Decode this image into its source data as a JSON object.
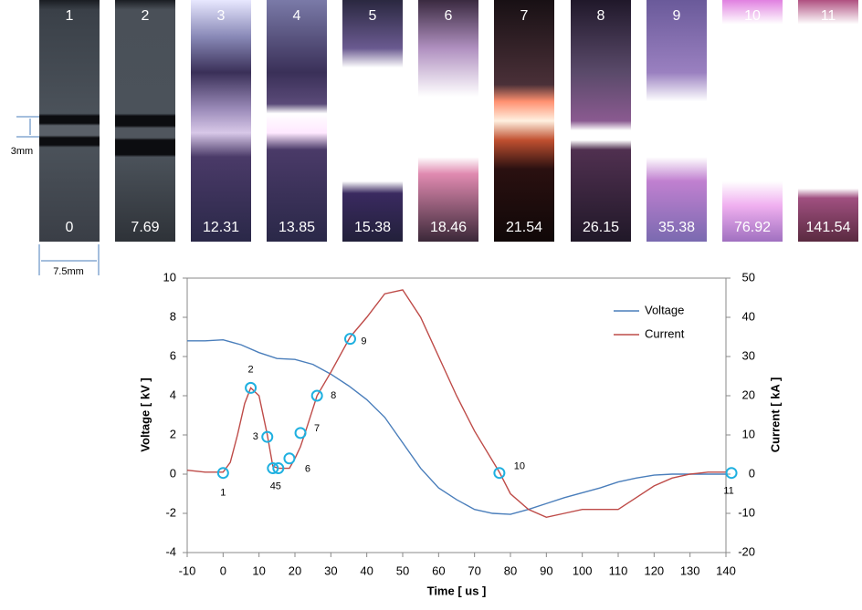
{
  "frames": [
    {
      "label": "1",
      "time": 0
    },
    {
      "label": "2",
      "time": 7.69
    },
    {
      "label": "3",
      "time": 12.31
    },
    {
      "label": "4",
      "time": 13.85
    },
    {
      "label": "5",
      "time": 15.38
    },
    {
      "label": "6",
      "time": 18.46
    },
    {
      "label": "7",
      "time": 21.54
    },
    {
      "label": "8",
      "time": 26.15
    },
    {
      "label": "9",
      "time": 35.38
    },
    {
      "label": "10",
      "time": 76.92
    },
    {
      "label": "11",
      "time": 141.54
    }
  ],
  "annotations": {
    "gap": "3mm",
    "width": "7.5mm"
  },
  "chart_data": {
    "type": "line",
    "x_label": "Time [ us ]",
    "y_label": "Voltage [ kV ]",
    "y2_label": "Current [ kA ]",
    "xlim": [
      -10,
      140
    ],
    "xticks": [
      -10,
      0,
      10,
      20,
      30,
      40,
      50,
      60,
      70,
      80,
      90,
      100,
      110,
      120,
      130,
      140
    ],
    "ylim": [
      -4,
      10
    ],
    "yticks": [
      -4,
      -2,
      0,
      2,
      4,
      6,
      8,
      10
    ],
    "y2lim": [
      -20,
      50
    ],
    "y2ticks": [
      -20,
      -10,
      0,
      10,
      20,
      30,
      40,
      50
    ],
    "legend": "upper right",
    "series": [
      {
        "name": "Voltage",
        "color": "#4a7ebb",
        "x": [
          -10,
          -5,
          0,
          5,
          10,
          15,
          20,
          25,
          30,
          35,
          40,
          45,
          50,
          55,
          60,
          65,
          70,
          75,
          80,
          85,
          90,
          95,
          100,
          105,
          110,
          115,
          120,
          125,
          130,
          135,
          140
        ],
        "values": [
          6.8,
          6.8,
          6.85,
          6.6,
          6.2,
          5.9,
          5.85,
          5.6,
          5.1,
          4.5,
          3.8,
          2.9,
          1.6,
          0.3,
          -0.7,
          -1.3,
          -1.8,
          -2.0,
          -2.05,
          -1.8,
          -1.5,
          -1.2,
          -0.95,
          -0.7,
          -0.4,
          -0.2,
          -0.05,
          0,
          0,
          0,
          0
        ]
      },
      {
        "name": "Current",
        "color": "#be4b48",
        "axis": "y2",
        "x": [
          -10,
          -5,
          0,
          2,
          4,
          6,
          7.69,
          10,
          12.31,
          13.85,
          15.38,
          17,
          18.46,
          20,
          21.54,
          23,
          26.15,
          30,
          35.38,
          40,
          45,
          50,
          55,
          60,
          65,
          70,
          76.92,
          80,
          85,
          90,
          95,
          100,
          105,
          110,
          115,
          120,
          125,
          130,
          135,
          140
        ],
        "values": [
          1,
          0.5,
          0.5,
          3,
          10,
          18,
          22,
          20,
          10,
          2,
          1.5,
          1.5,
          1.5,
          4,
          7,
          11,
          20,
          26,
          35,
          40,
          46,
          47,
          40,
          30,
          20,
          11,
          0.5,
          -5,
          -9,
          -11,
          -10,
          -9,
          -9,
          -9,
          -6,
          -3,
          -1,
          0,
          0.5,
          0.5
        ]
      }
    ],
    "markers": {
      "color": "#1fb0e0",
      "values": [
        0.3,
        22,
        9.5,
        1.5,
        1.5,
        4,
        10.5,
        20,
        34.5,
        0.3,
        0.3
      ]
    }
  }
}
